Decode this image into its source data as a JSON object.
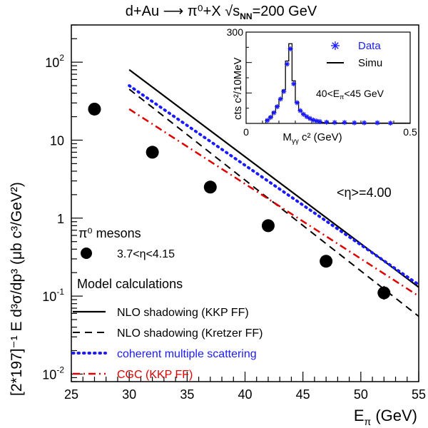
{
  "chart_data": {
    "type": "scatter",
    "title": "d+Au ⟶ π⁰+X   √s",
    "title_sub": "NN",
    "title_tail": "=200 GeV",
    "xlabel": "E",
    "xlabel_sub": "π",
    "xlabel_tail": " (GeV)",
    "ylabel": "[2*197]⁻¹ E d³σ/dp³ (μb c³/GeV²)",
    "xlim": [
      25,
      55
    ],
    "ylim": [
      0.008,
      300
    ],
    "yscale": "log",
    "x_ticks": [
      {
        "v": 25,
        "label": "25"
      },
      {
        "v": 30,
        "label": "30"
      },
      {
        "v": 35,
        "label": "35"
      },
      {
        "v": 40,
        "label": "40"
      },
      {
        "v": 45,
        "label": "45"
      },
      {
        "v": 50,
        "label": "50"
      },
      {
        "v": 55,
        "label": "55"
      }
    ],
    "y_ticks": [
      {
        "v": 0.01,
        "base": "10",
        "exp": "-2"
      },
      {
        "v": 0.1,
        "base": "10",
        "exp": "-1"
      },
      {
        "v": 1,
        "base": "1",
        "exp": ""
      },
      {
        "v": 10,
        "base": "10",
        "exp": ""
      },
      {
        "v": 100,
        "base": "10",
        "exp": "2"
      }
    ],
    "eta_annotation": "<η>=4.00",
    "data_series": {
      "name": "3.7<η<4.15",
      "group_label": "π⁰ mesons",
      "x": [
        27.0,
        32.0,
        37.0,
        42.0,
        47.0,
        52.0
      ],
      "y": [
        25,
        7,
        2.5,
        0.8,
        0.28,
        0.11
      ],
      "yerr_up": [
        0,
        0,
        0,
        0,
        0.33,
        0.135
      ],
      "yerr_down": [
        0,
        0,
        0,
        0,
        0.24,
        0.09
      ]
    },
    "model_heading": "Model calculations",
    "models": [
      {
        "name": "NLO shadowing (KKP FF)",
        "x": [
          30,
          55
        ],
        "y": [
          80,
          0.13
        ],
        "color": "#000000",
        "style": "solid"
      },
      {
        "name": "NLO shadowing (Kretzer FF)",
        "x": [
          30,
          55
        ],
        "y": [
          45,
          0.055
        ],
        "color": "#000000",
        "style": "dashed"
      },
      {
        "name": "coherent multiple scattering",
        "x": [
          30,
          55
        ],
        "y": [
          50,
          0.14
        ],
        "color": "#1a1aff",
        "style": "dotted"
      },
      {
        "name": "CGC (KKP FF)",
        "x": [
          30,
          55
        ],
        "y": [
          25,
          0.1
        ],
        "color": "#e00000",
        "style": "dashdot"
      }
    ],
    "inset": {
      "ylabel": "cts c²/10MeV",
      "xlabel": "M",
      "xlabel_sub": "γγ",
      "xlabel_tail": " c² (GeV)",
      "xlim": [
        0,
        0.5
      ],
      "ylim": [
        0,
        300
      ],
      "x_ticks": [
        {
          "v": 0,
          "label": "0"
        },
        {
          "v": 0.5,
          "label": "0.5"
        }
      ],
      "y_ticks": [
        {
          "v": 300,
          "label": "300"
        }
      ],
      "energy_range": "40<E",
      "energy_range_sub": "π",
      "energy_range_tail": "<45 GeV",
      "legend": [
        {
          "name": "Data",
          "marker": "star",
          "color": "#1a1aff"
        },
        {
          "name": "Simu",
          "marker": "line",
          "color": "#000000"
        }
      ],
      "simu_bins": {
        "edges": [
          0.06,
          0.07,
          0.08,
          0.09,
          0.1,
          0.11,
          0.12,
          0.13,
          0.14,
          0.15,
          0.16,
          0.17,
          0.18,
          0.19,
          0.2,
          0.21,
          0.22,
          0.23,
          0.24,
          0.25
        ],
        "values": [
          12,
          22,
          38,
          58,
          80,
          110,
          205,
          262,
          140,
          70,
          42,
          30,
          22,
          15,
          10,
          8,
          5,
          3,
          2
        ]
      },
      "data_points": {
        "x": [
          0.065,
          0.075,
          0.085,
          0.095,
          0.105,
          0.115,
          0.125,
          0.135,
          0.145,
          0.155,
          0.165,
          0.175,
          0.185,
          0.195,
          0.205,
          0.215,
          0.225,
          0.245,
          0.27,
          0.3,
          0.33,
          0.36,
          0.4,
          0.44
        ],
        "y": [
          10,
          20,
          35,
          55,
          80,
          105,
          195,
          245,
          130,
          68,
          42,
          30,
          22,
          16,
          11,
          8,
          6,
          4,
          3,
          3,
          2,
          2,
          2,
          1
        ]
      }
    }
  }
}
